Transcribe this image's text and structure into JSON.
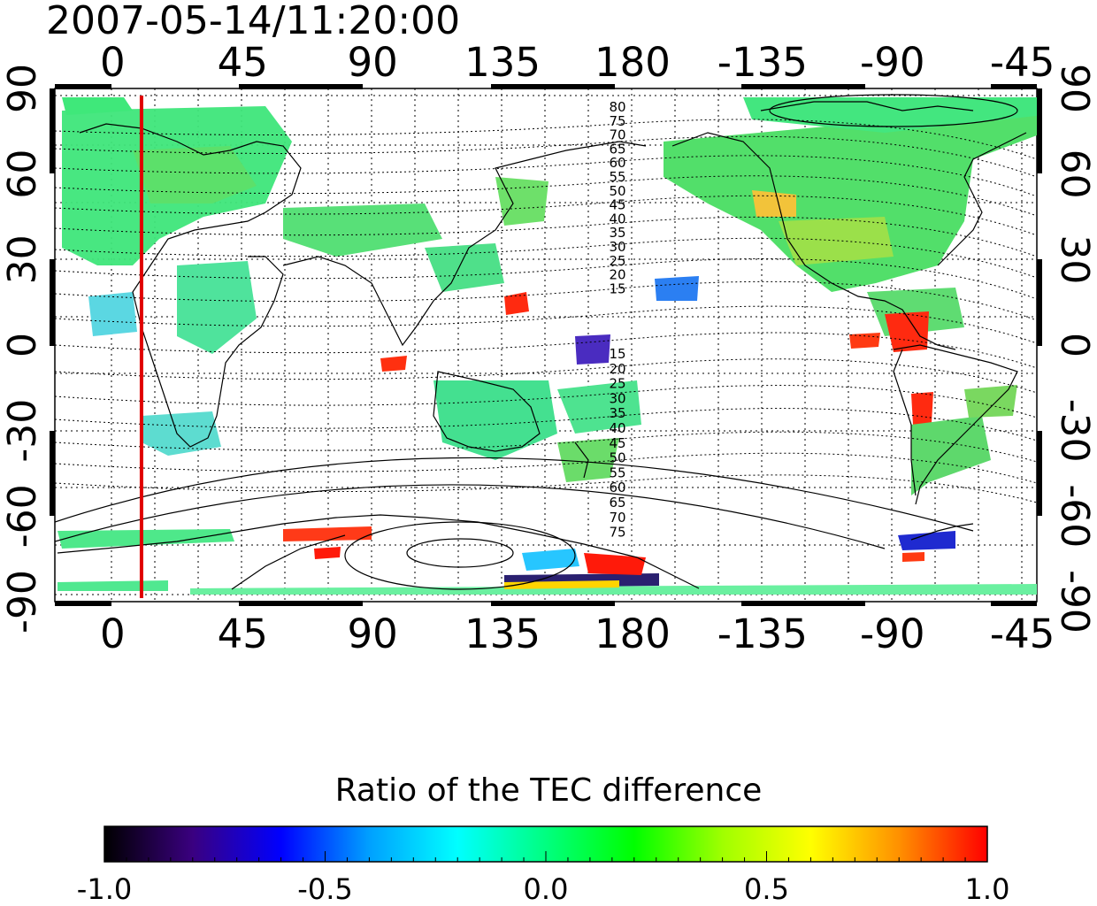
{
  "title": "2007-05-14/11:20:00",
  "map": {
    "top_lon_labels": [
      "0",
      "45",
      "90",
      "135",
      "180",
      "-135",
      "-90",
      "-45"
    ],
    "bottom_lon_labels": [
      "0",
      "45",
      "90",
      "135",
      "180",
      "-135",
      "-90",
      "-45"
    ],
    "left_lat_labels": [
      "90",
      "60",
      "30",
      "0",
      "-30",
      "-60",
      "-90"
    ],
    "right_lat_labels": [
      "90",
      "60",
      "30",
      "0",
      "-30",
      "-60",
      "-90"
    ],
    "lat_range": [
      -90,
      90
    ],
    "lon_range": [
      -20,
      320
    ],
    "grid": true,
    "marker_line": {
      "lon": 10,
      "color": "#e00000"
    },
    "contour_labels_north": [
      "80",
      "75",
      "70",
      "65",
      "60",
      "55",
      "50",
      "45",
      "40",
      "35",
      "30",
      "25",
      "20",
      "15"
    ],
    "contour_labels_south": [
      "15",
      "20",
      "25",
      "30",
      "35",
      "40",
      "45",
      "50",
      "55",
      "60",
      "65",
      "70",
      "75"
    ]
  },
  "colorbar": {
    "title": "Ratio of the TEC difference",
    "min": -1.0,
    "max": 1.0,
    "tick_labels": [
      "-1.0",
      "-0.5",
      "0.0",
      "0.5",
      "1.0"
    ],
    "colors": [
      "#000000",
      "#3a0080",
      "#0000ff",
      "#00a0ff",
      "#00ffff",
      "#00ff80",
      "#00ff00",
      "#a0ff00",
      "#ffff00",
      "#ff9000",
      "#ff0000"
    ]
  }
}
